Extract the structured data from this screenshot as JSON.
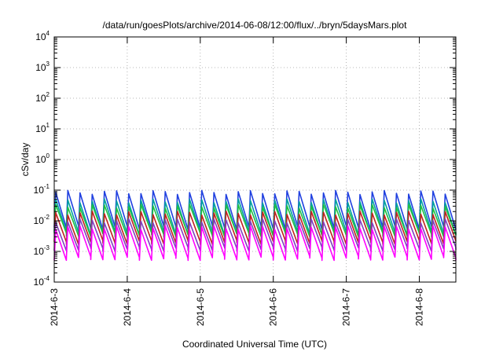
{
  "chart_data": {
    "type": "line",
    "title": "/data/run/goesPlots/archive/2014-06-08/12:00/flux/../bryn/5daysMars.plot",
    "xlabel": "Coordinated Universal Time (UTC)",
    "ylabel": "cSv/day",
    "y_scale": "log",
    "ylim": [
      0.0001,
      10000
    ],
    "xlim": [
      "2014-6-3",
      "2014-6-8 12:00"
    ],
    "x_ticks": [
      "2014-6-3",
      "2014-6-4",
      "2014-6-5",
      "2014-6-6",
      "2014-6-7",
      "2014-6-8"
    ],
    "y_ticks": [
      {
        "base": "10",
        "exp": "-4"
      },
      {
        "base": "10",
        "exp": "-3"
      },
      {
        "base": "10",
        "exp": "-2"
      },
      {
        "base": "10",
        "exp": "-1"
      },
      {
        "base": "10",
        "exp": "0"
      },
      {
        "base": "10",
        "exp": "1"
      },
      {
        "base": "10",
        "exp": "2"
      },
      {
        "base": "10",
        "exp": "3"
      },
      {
        "base": "10",
        "exp": "4"
      }
    ],
    "grid": true,
    "legend": "none",
    "pattern": {
      "cycles_per_day": 6,
      "description_free": true
    },
    "series": [
      {
        "color": "#2040e0",
        "peak": 0.085,
        "trough": 0.006
      },
      {
        "color": "#00a0a0",
        "peak": 0.045,
        "trough": 0.004
      },
      {
        "color": "#20c040",
        "peak": 0.03,
        "trough": 0.0035
      },
      {
        "color": "#c02020",
        "peak": 0.018,
        "trough": 0.002
      },
      {
        "color": "#8040c0",
        "peak": 0.01,
        "trough": 0.0012
      },
      {
        "color": "#ff00ff",
        "peak": 0.006,
        "trough": 0.0006
      }
    ]
  }
}
